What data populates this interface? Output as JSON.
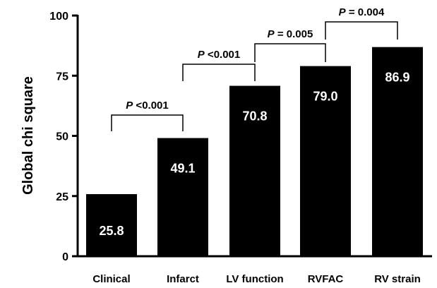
{
  "chart_data": {
    "type": "bar",
    "title": "",
    "xlabel": "",
    "ylabel": "Global chi square",
    "categories": [
      "Clinical",
      "Infarct",
      "LV function",
      "RVFAC",
      "RV strain"
    ],
    "values": [
      25.8,
      49.1,
      70.8,
      79.0,
      86.9
    ],
    "value_labels": [
      "25.8",
      "49.1",
      "70.8",
      "79.0",
      "86.9"
    ],
    "ylim": [
      0,
      100
    ],
    "yticks": [
      0,
      25,
      50,
      75,
      100
    ],
    "grid": false,
    "bar_color": "#000000",
    "comparisons": [
      {
        "from": 0,
        "to": 1,
        "p_symbol": "P",
        "p_text": " <0.001"
      },
      {
        "from": 1,
        "to": 2,
        "p_symbol": "P",
        "p_text": " <0.001"
      },
      {
        "from": 2,
        "to": 3,
        "p_symbol": "P",
        "p_text": " = 0.005"
      },
      {
        "from": 3,
        "to": 4,
        "p_symbol": "P",
        "p_text": " = 0.004"
      }
    ]
  }
}
